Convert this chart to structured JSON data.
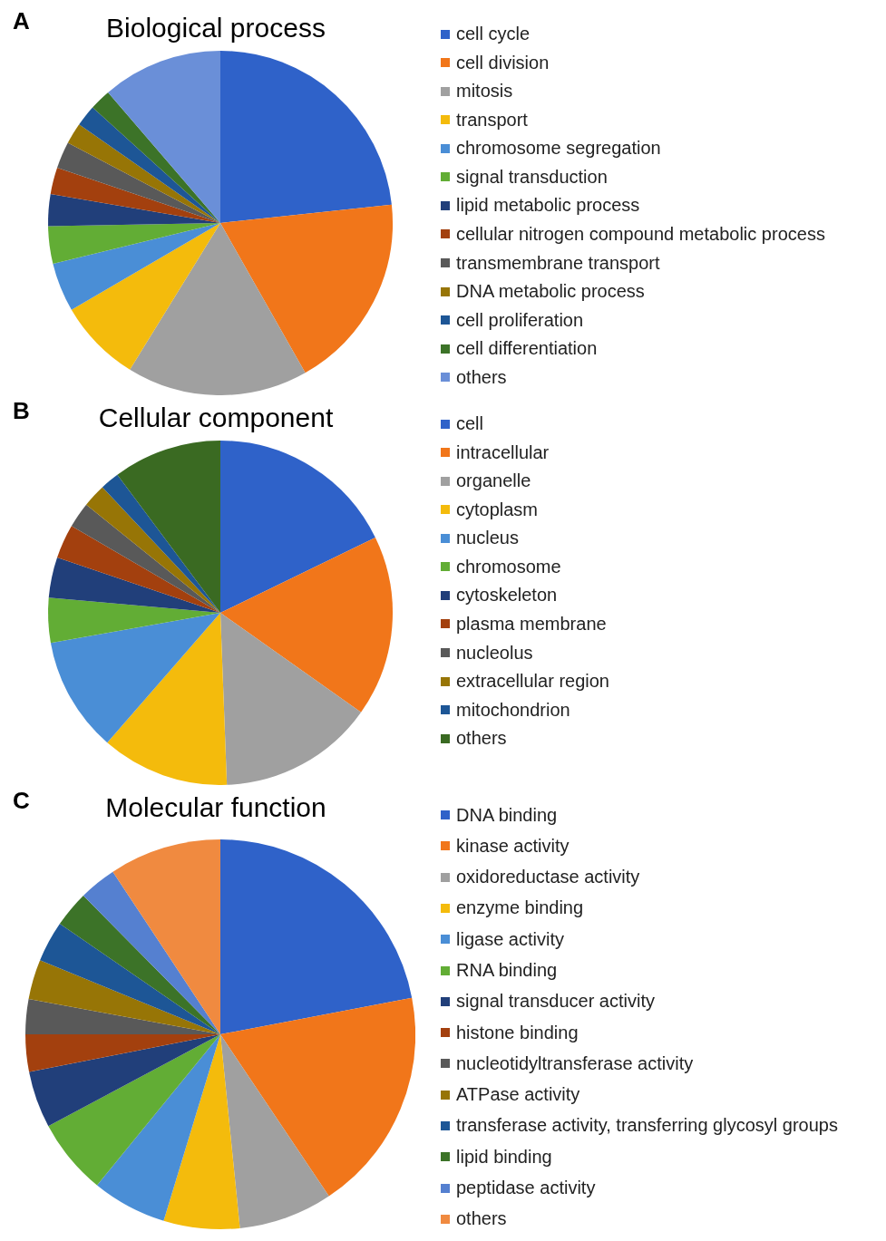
{
  "chart_data": [
    {
      "type": "pie",
      "title": "Biological process",
      "annotations": [
        "A"
      ],
      "legend": "right",
      "categories": [
        "cell cycle",
        "cell division",
        "mitosis",
        "transport",
        "chromosome segregation",
        "signal transduction",
        "lipid metabolic process",
        "cellular nitrogen compound metabolic process",
        "transmembrane transport",
        "DNA metabolic process",
        "cell proliferation",
        "cell differentiation",
        "others"
      ],
      "values": [
        23.3,
        18.5,
        17,
        7.8,
        4.6,
        3.5,
        3,
        2.5,
        2.5,
        2,
        2,
        2,
        11.3
      ],
      "colors": [
        "#2f62c9",
        "#f1761a",
        "#a0a0a0",
        "#f4bb0c",
        "#4a8ed6",
        "#62ad35",
        "#213f7a",
        "#a3400e",
        "#595959",
        "#977506",
        "#1d5696",
        "#3c7328",
        "#6a8fd8"
      ]
    },
    {
      "type": "pie",
      "title": "Cellular component",
      "annotations": [
        "B"
      ],
      "legend": "right",
      "categories": [
        "cell",
        "intracellular",
        "organelle",
        "cytoplasm",
        "nucleus",
        "chromosome",
        "cytoskeleton",
        "plasma membrane",
        "nucleolus",
        "extracellular region",
        "mitochondrion",
        "others"
      ],
      "values": [
        17.8,
        17,
        14.6,
        12,
        10.8,
        4.2,
        3.8,
        3.2,
        2.4,
        2.2,
        1.8,
        10.2
      ],
      "colors": [
        "#2f62c9",
        "#f1761a",
        "#a0a0a0",
        "#f4bb0c",
        "#4a8ed6",
        "#62ad35",
        "#213f7a",
        "#a3400e",
        "#595959",
        "#977506",
        "#1d5696",
        "#3a6a22"
      ]
    },
    {
      "type": "pie",
      "title": "Molecular function",
      "annotations": [
        "C"
      ],
      "legend": "right",
      "categories": [
        "DNA binding",
        "kinase activity",
        "oxidoreductase activity",
        "enzyme binding",
        "ligase activity",
        "RNA binding",
        "signal transducer activity",
        "histone binding",
        "nucleotidyltransferase activity",
        "ATPase activity",
        "transferase activity, transferring glycosyl groups",
        "lipid binding",
        "peptidase activity",
        "others"
      ],
      "values": [
        22,
        18.6,
        7.8,
        6.3,
        6.2,
        6.3,
        4.7,
        3.1,
        2.9,
        3.3,
        3.4,
        3,
        3.1,
        9.3
      ],
      "colors": [
        "#2f62c9",
        "#f1761a",
        "#a0a0a0",
        "#f4bb0c",
        "#4a8ed6",
        "#62ad35",
        "#213f7a",
        "#a3400e",
        "#595959",
        "#977506",
        "#1d5696",
        "#3c7328",
        "#5580d0",
        "#f08a40"
      ]
    }
  ]
}
